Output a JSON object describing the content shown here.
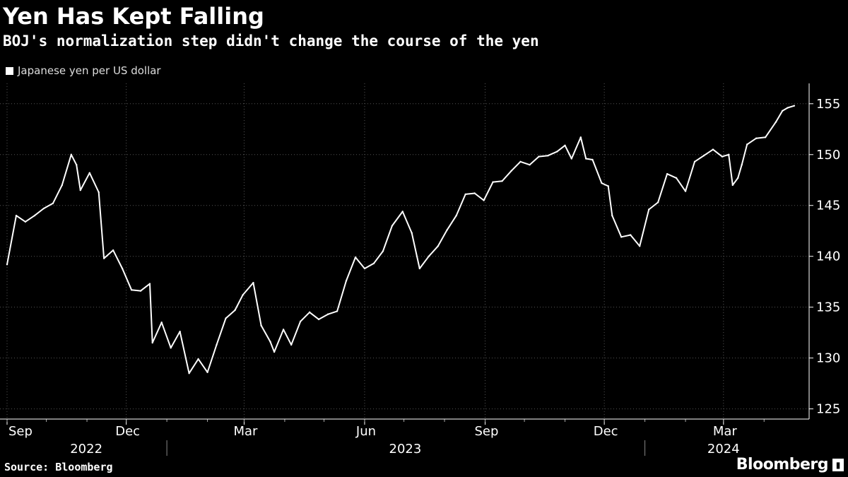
{
  "header": {
    "title": "Yen Has Kept Falling",
    "subtitle": "BOJ's normalization step didn't change the course of the yen"
  },
  "footer": {
    "source": "Source: Bloomberg",
    "brand": "Bloomberg"
  },
  "chart_data": {
    "type": "line",
    "style": "OHLC daily bars",
    "series": [
      {
        "name": "Japanese yen per US dollar",
        "color": "#ffffff",
        "points": [
          [
            "2022-09-01",
            139.2
          ],
          [
            "2022-09-08",
            144.0
          ],
          [
            "2022-09-15",
            143.4
          ],
          [
            "2022-09-22",
            144.0
          ],
          [
            "2022-09-29",
            144.7
          ],
          [
            "2022-10-06",
            145.2
          ],
          [
            "2022-10-13",
            147.0
          ],
          [
            "2022-10-20",
            150.0
          ],
          [
            "2022-10-24",
            149.0
          ],
          [
            "2022-10-27",
            146.5
          ],
          [
            "2022-11-03",
            148.2
          ],
          [
            "2022-11-10",
            146.3
          ],
          [
            "2022-11-14",
            139.8
          ],
          [
            "2022-11-21",
            140.6
          ],
          [
            "2022-11-28",
            138.8
          ],
          [
            "2022-12-05",
            136.7
          ],
          [
            "2022-12-12",
            136.6
          ],
          [
            "2022-12-19",
            137.3
          ],
          [
            "2022-12-21",
            131.5
          ],
          [
            "2022-12-28",
            133.5
          ],
          [
            "2023-01-04",
            131.0
          ],
          [
            "2023-01-11",
            132.6
          ],
          [
            "2023-01-18",
            128.5
          ],
          [
            "2023-01-25",
            129.9
          ],
          [
            "2023-02-01",
            128.6
          ],
          [
            "2023-02-08",
            131.3
          ],
          [
            "2023-02-15",
            133.9
          ],
          [
            "2023-02-22",
            134.7
          ],
          [
            "2023-02-28",
            136.2
          ],
          [
            "2023-03-08",
            137.4
          ],
          [
            "2023-03-14",
            133.2
          ],
          [
            "2023-03-21",
            131.6
          ],
          [
            "2023-03-24",
            130.6
          ],
          [
            "2023-03-31",
            132.8
          ],
          [
            "2023-04-06",
            131.3
          ],
          [
            "2023-04-13",
            133.6
          ],
          [
            "2023-04-20",
            134.5
          ],
          [
            "2023-04-27",
            133.8
          ],
          [
            "2023-05-04",
            134.3
          ],
          [
            "2023-05-11",
            134.6
          ],
          [
            "2023-05-18",
            137.6
          ],
          [
            "2023-05-25",
            139.9
          ],
          [
            "2023-06-01",
            138.8
          ],
          [
            "2023-06-08",
            139.3
          ],
          [
            "2023-06-15",
            140.5
          ],
          [
            "2023-06-22",
            143.0
          ],
          [
            "2023-06-30",
            144.4
          ],
          [
            "2023-07-07",
            142.3
          ],
          [
            "2023-07-13",
            138.8
          ],
          [
            "2023-07-20",
            140.0
          ],
          [
            "2023-07-27",
            141.0
          ],
          [
            "2023-08-03",
            142.6
          ],
          [
            "2023-08-10",
            144.0
          ],
          [
            "2023-08-17",
            146.1
          ],
          [
            "2023-08-24",
            146.2
          ],
          [
            "2023-08-31",
            145.5
          ],
          [
            "2023-09-07",
            147.3
          ],
          [
            "2023-09-14",
            147.4
          ],
          [
            "2023-09-21",
            148.4
          ],
          [
            "2023-09-28",
            149.3
          ],
          [
            "2023-10-05",
            149.0
          ],
          [
            "2023-10-12",
            149.8
          ],
          [
            "2023-10-19",
            149.9
          ],
          [
            "2023-10-26",
            150.3
          ],
          [
            "2023-11-01",
            150.9
          ],
          [
            "2023-11-06",
            149.6
          ],
          [
            "2023-11-13",
            151.7
          ],
          [
            "2023-11-17",
            149.6
          ],
          [
            "2023-11-22",
            149.5
          ],
          [
            "2023-11-29",
            147.2
          ],
          [
            "2023-12-04",
            146.9
          ],
          [
            "2023-12-07",
            144.0
          ],
          [
            "2023-12-14",
            141.9
          ],
          [
            "2023-12-21",
            142.1
          ],
          [
            "2023-12-28",
            141.0
          ],
          [
            "2024-01-04",
            144.6
          ],
          [
            "2024-01-11",
            145.3
          ],
          [
            "2024-01-18",
            148.1
          ],
          [
            "2024-01-25",
            147.7
          ],
          [
            "2024-02-01",
            146.4
          ],
          [
            "2024-02-08",
            149.3
          ],
          [
            "2024-02-15",
            149.9
          ],
          [
            "2024-02-22",
            150.5
          ],
          [
            "2024-02-29",
            149.8
          ],
          [
            "2024-03-05",
            150.0
          ],
          [
            "2024-03-08",
            147.0
          ],
          [
            "2024-03-12",
            147.7
          ],
          [
            "2024-03-15",
            149.0
          ],
          [
            "2024-03-19",
            151.0
          ],
          [
            "2024-03-26",
            151.6
          ],
          [
            "2024-04-02",
            151.7
          ],
          [
            "2024-04-10",
            153.2
          ],
          [
            "2024-04-15",
            154.3
          ],
          [
            "2024-04-19",
            154.6
          ],
          [
            "2024-04-24",
            154.8
          ]
        ]
      }
    ],
    "x_range": [
      "2022-09-01",
      "2024-04-30"
    ],
    "x_ticks": [
      {
        "date": "2022-09-01",
        "label": "Sep"
      },
      {
        "date": "2022-12-01",
        "label": "Dec"
      },
      {
        "date": "2023-03-01",
        "label": "Mar"
      },
      {
        "date": "2023-06-01",
        "label": "Jun"
      },
      {
        "date": "2023-09-01",
        "label": "Sep"
      },
      {
        "date": "2023-12-01",
        "label": "Dec"
      },
      {
        "date": "2024-03-01",
        "label": "Mar"
      }
    ],
    "x_years": [
      {
        "label": "2022",
        "start": "2022-09-01",
        "end": "2022-12-31"
      },
      {
        "label": "2023",
        "start": "2023-01-01",
        "end": "2023-12-31"
      },
      {
        "label": "2024",
        "start": "2024-01-01",
        "end": "2024-04-30"
      }
    ],
    "ylim": [
      124,
      157
    ],
    "y_ticks": [
      125,
      130,
      135,
      140,
      145,
      150,
      155
    ],
    "y_axis_side": "right",
    "grid": "dotted vertical and horizontal",
    "legend_position": "top-left",
    "background": "#000000"
  }
}
